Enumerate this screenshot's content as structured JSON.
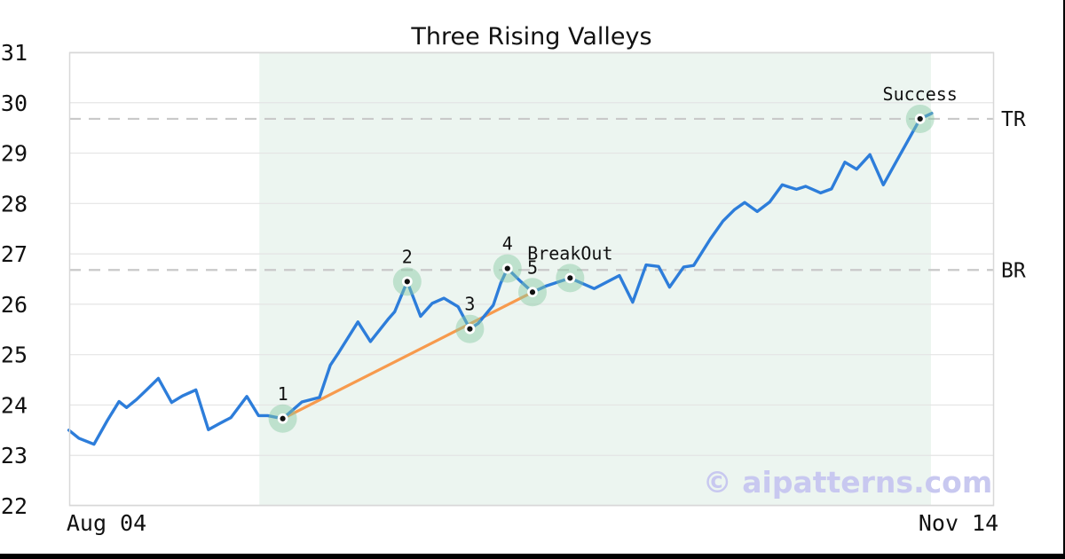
{
  "figure": {
    "title": "Three Rising Valleys",
    "watermark": "© aipatterns.com"
  },
  "chart_data": {
    "type": "line",
    "title": "Three Rising Valleys",
    "x_axis": {
      "tick_labels": [
        "Aug 04",
        "Nov 14"
      ],
      "tick_days": [
        0,
        102
      ],
      "day_range": [
        -4.5,
        106.3
      ],
      "grid": false
    },
    "y_axis": {
      "ticks": [
        22,
        23,
        24,
        25,
        26,
        27,
        28,
        29,
        30,
        31
      ],
      "range": [
        22,
        31
      ],
      "grid": true
    },
    "series": [
      {
        "name": "price",
        "color": "#2d7dda",
        "points": [
          [
            -4.5,
            23.5
          ],
          [
            -3.3,
            23.34
          ],
          [
            -1.5,
            23.22
          ],
          [
            0.1,
            23.69
          ],
          [
            1.5,
            24.07
          ],
          [
            2.4,
            23.95
          ],
          [
            3.6,
            24.11
          ],
          [
            4.8,
            24.3
          ],
          [
            6.2,
            24.53
          ],
          [
            7.8,
            24.05
          ],
          [
            9.1,
            24.18
          ],
          [
            10.7,
            24.3
          ],
          [
            12.2,
            23.51
          ],
          [
            13.5,
            23.63
          ],
          [
            14.9,
            23.75
          ],
          [
            16.8,
            24.17
          ],
          [
            18.2,
            23.79
          ],
          [
            19.3,
            23.79
          ],
          [
            21.1,
            23.73
          ],
          [
            23.4,
            24.06
          ],
          [
            25.5,
            24.15
          ],
          [
            26.8,
            24.79
          ],
          [
            27.8,
            25.04
          ],
          [
            30.1,
            25.65
          ],
          [
            31.6,
            25.26
          ],
          [
            33.7,
            25.7
          ],
          [
            34.5,
            25.85
          ],
          [
            36.0,
            26.45
          ],
          [
            37.6,
            25.76
          ],
          [
            39.0,
            26.02
          ],
          [
            40.4,
            26.12
          ],
          [
            42.1,
            25.95
          ],
          [
            43.5,
            25.51
          ],
          [
            44.5,
            25.62
          ],
          [
            46.3,
            25.98
          ],
          [
            47.2,
            26.42
          ],
          [
            48.0,
            26.71
          ],
          [
            49.6,
            26.45
          ],
          [
            51.0,
            26.24
          ],
          [
            52.6,
            26.36
          ],
          [
            55.5,
            26.52
          ],
          [
            58.4,
            26.31
          ],
          [
            61.4,
            26.57
          ],
          [
            63.0,
            26.04
          ],
          [
            64.6,
            26.78
          ],
          [
            66.1,
            26.75
          ],
          [
            67.4,
            26.34
          ],
          [
            69.1,
            26.74
          ],
          [
            70.3,
            26.77
          ],
          [
            72.3,
            27.3
          ],
          [
            73.8,
            27.65
          ],
          [
            75.2,
            27.88
          ],
          [
            76.4,
            28.02
          ],
          [
            77.9,
            27.84
          ],
          [
            79.4,
            28.03
          ],
          [
            80.9,
            28.37
          ],
          [
            82.6,
            28.28
          ],
          [
            83.7,
            28.34
          ],
          [
            85.5,
            28.21
          ],
          [
            86.8,
            28.29
          ],
          [
            88.4,
            28.82
          ],
          [
            89.8,
            28.68
          ],
          [
            91.4,
            28.97
          ],
          [
            93.0,
            28.37
          ],
          [
            97.4,
            29.68
          ],
          [
            98.8,
            29.79
          ]
        ]
      }
    ],
    "trendline": {
      "name": "rising-valleys-trendline",
      "color": "#f79a4d",
      "from": [
        21.1,
        23.73
      ],
      "to": [
        51.0,
        26.24
      ]
    },
    "hlines": [
      {
        "label": "TR",
        "value": 29.68,
        "color": "#c9c9c9",
        "style": "dashed"
      },
      {
        "label": "BR",
        "value": 26.68,
        "color": "#c9c9c9",
        "style": "dashed"
      }
    ],
    "shaded_region": {
      "from_day": 18.3,
      "to_day": 98.7,
      "color": "#ecf5f0"
    },
    "annotations": [
      {
        "label": "1",
        "day": 21.1,
        "value": 23.73
      },
      {
        "label": "2",
        "day": 36.0,
        "value": 26.45
      },
      {
        "label": "3",
        "day": 43.5,
        "value": 25.51
      },
      {
        "label": "4",
        "day": 48.0,
        "value": 26.71
      },
      {
        "label": "5",
        "day": 51.0,
        "value": 26.24
      },
      {
        "label": "BreakOut",
        "day": 55.5,
        "value": 26.52
      },
      {
        "label": "Success",
        "day": 97.4,
        "value": 29.68
      }
    ],
    "marker_style": {
      "halo_color": "#87caa2",
      "dot_color": "#111111",
      "ring_color": "#ffffff"
    },
    "legend": "none"
  }
}
